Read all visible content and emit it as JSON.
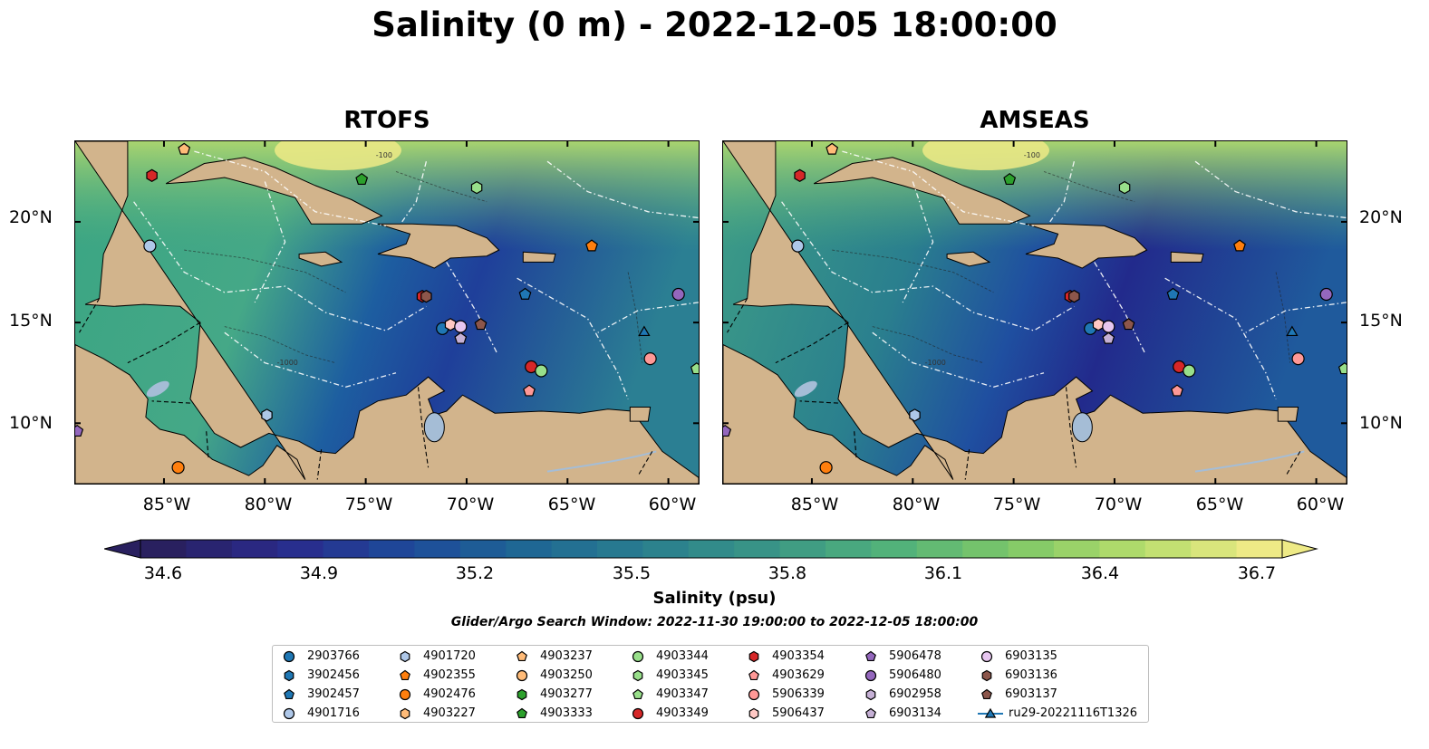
{
  "title": "Salinity (0 m) - 2022-12-05 18:00:00",
  "panels": [
    {
      "title": "RTOFS"
    },
    {
      "title": "AMSEAS"
    }
  ],
  "lat_labels": [
    "20°N",
    "15°N",
    "10°N"
  ],
  "lon_labels": [
    "85°W",
    "80°W",
    "75°W",
    "70°W",
    "65°W",
    "60°W"
  ],
  "contour_labels": [
    "-100",
    "-1000"
  ],
  "colorbar": {
    "label": "Salinity (psu)",
    "ticks": [
      "34.6",
      "34.9",
      "35.2",
      "35.5",
      "35.8",
      "36.1",
      "36.4",
      "36.7"
    ],
    "colormap": [
      "#29205f",
      "#2a2a8c",
      "#1d4a9a",
      "#1f6794",
      "#2a7f8e",
      "#3a9686",
      "#52b27a",
      "#7fc867",
      "#b5dc6b",
      "#eeea86"
    ]
  },
  "search_window": "Glider/Argo Search Window: 2022-11-30 19:00:00 to 2022-12-05 18:00:00",
  "colors": {
    "land": "#d2b48c",
    "pacific_amseas": "#95b4df",
    "river": "#a5bdd6"
  },
  "legend": [
    {
      "label": "2903766",
      "color": "#1f77b4",
      "marker": "circle"
    },
    {
      "label": "3902456",
      "color": "#1f77b4",
      "marker": "hexagon"
    },
    {
      "label": "3902457",
      "color": "#1f77b4",
      "marker": "pentagon"
    },
    {
      "label": "4901716",
      "color": "#aec7e8",
      "marker": "circle"
    },
    {
      "label": "4901720",
      "color": "#aec7e8",
      "marker": "hexagon"
    },
    {
      "label": "4902355",
      "color": "#ff7f0e",
      "marker": "pentagon"
    },
    {
      "label": "4902476",
      "color": "#ff7f0e",
      "marker": "circle"
    },
    {
      "label": "4903227",
      "color": "#ffbb78",
      "marker": "hexagon"
    },
    {
      "label": "4903237",
      "color": "#ffbb78",
      "marker": "pentagon"
    },
    {
      "label": "4903250",
      "color": "#ffbb78",
      "marker": "circle"
    },
    {
      "label": "4903277",
      "color": "#2ca02c",
      "marker": "hexagon"
    },
    {
      "label": "4903333",
      "color": "#2ca02c",
      "marker": "pentagon"
    },
    {
      "label": "4903344",
      "color": "#98df8a",
      "marker": "circle"
    },
    {
      "label": "4903345",
      "color": "#98df8a",
      "marker": "hexagon"
    },
    {
      "label": "4903347",
      "color": "#98df8a",
      "marker": "pentagon"
    },
    {
      "label": "4903349",
      "color": "#d62728",
      "marker": "circle"
    },
    {
      "label": "4903354",
      "color": "#d62728",
      "marker": "hexagon"
    },
    {
      "label": "4903629",
      "color": "#ff9896",
      "marker": "pentagon"
    },
    {
      "label": "5906339",
      "color": "#ff9896",
      "marker": "circle"
    },
    {
      "label": "5906437",
      "color": "#ffc8c4",
      "marker": "hexagon"
    },
    {
      "label": "5906478",
      "color": "#9467bd",
      "marker": "pentagon"
    },
    {
      "label": "5906480",
      "color": "#9467bd",
      "marker": "circle"
    },
    {
      "label": "6902958",
      "color": "#c5b0d5",
      "marker": "hexagon"
    },
    {
      "label": "6903134",
      "color": "#c5b0d5",
      "marker": "pentagon"
    },
    {
      "label": "6903135",
      "color": "#e7c6f0",
      "marker": "circle"
    },
    {
      "label": "6903136",
      "color": "#8c564b",
      "marker": "hexagon"
    },
    {
      "label": "6903137",
      "color": "#8c564b",
      "marker": "pentagon"
    },
    {
      "label": "ru29-20221116T1326",
      "color": "#1f77b4",
      "marker": "triangle"
    }
  ],
  "floats": [
    {
      "lon": -85.6,
      "lat": 22.3,
      "color": "#d62728",
      "marker": "hexagon"
    },
    {
      "lon": -84.0,
      "lat": 23.6,
      "color": "#ffbb78",
      "marker": "pentagon"
    },
    {
      "lon": -85.7,
      "lat": 18.8,
      "color": "#aec7e8",
      "marker": "circle"
    },
    {
      "lon": -75.2,
      "lat": 22.1,
      "color": "#2ca02c",
      "marker": "pentagon"
    },
    {
      "lon": -69.5,
      "lat": 21.7,
      "color": "#98df8a",
      "marker": "hexagon"
    },
    {
      "lon": -72.2,
      "lat": 16.3,
      "color": "#d62728",
      "marker": "hexagon"
    },
    {
      "lon": -72.0,
      "lat": 16.3,
      "color": "#8c564b",
      "marker": "hexagon"
    },
    {
      "lon": -67.1,
      "lat": 16.4,
      "color": "#1f77b4",
      "marker": "pentagon"
    },
    {
      "lon": -63.8,
      "lat": 18.8,
      "color": "#ff7f0e",
      "marker": "pentagon"
    },
    {
      "lon": -71.2,
      "lat": 14.7,
      "color": "#1f77b4",
      "marker": "circle"
    },
    {
      "lon": -70.8,
      "lat": 14.9,
      "color": "#ffc8c4",
      "marker": "hexagon"
    },
    {
      "lon": -70.3,
      "lat": 14.8,
      "color": "#e7c6f0",
      "marker": "circle"
    },
    {
      "lon": -70.3,
      "lat": 14.2,
      "color": "#c5b0d5",
      "marker": "pentagon"
    },
    {
      "lon": -69.3,
      "lat": 14.9,
      "color": "#8c564b",
      "marker": "pentagon"
    },
    {
      "lon": -66.8,
      "lat": 12.8,
      "color": "#d62728",
      "marker": "circle"
    },
    {
      "lon": -66.3,
      "lat": 12.6,
      "color": "#98df8a",
      "marker": "circle"
    },
    {
      "lon": -66.9,
      "lat": 11.6,
      "color": "#ff9896",
      "marker": "pentagon"
    },
    {
      "lon": -61.2,
      "lat": 14.5,
      "color": "#1f77b4",
      "marker": "triangle"
    },
    {
      "lon": -60.9,
      "lat": 13.2,
      "color": "#ff9896",
      "marker": "circle"
    },
    {
      "lon": -59.5,
      "lat": 16.4,
      "color": "#9467bd",
      "marker": "circle"
    },
    {
      "lon": -58.6,
      "lat": 12.7,
      "color": "#98df8a",
      "marker": "pentagon"
    },
    {
      "lon": -79.9,
      "lat": 10.4,
      "color": "#aec7e8",
      "marker": "hexagon"
    },
    {
      "lon": -89.9,
      "lat": 9.9,
      "color": "#9467bd",
      "marker": "circle"
    },
    {
      "lon": -89.3,
      "lat": 9.6,
      "color": "#9467bd",
      "marker": "pentagon"
    },
    {
      "lon": -84.3,
      "lat": 7.8,
      "color": "#ff7f0e",
      "marker": "circle"
    }
  ]
}
